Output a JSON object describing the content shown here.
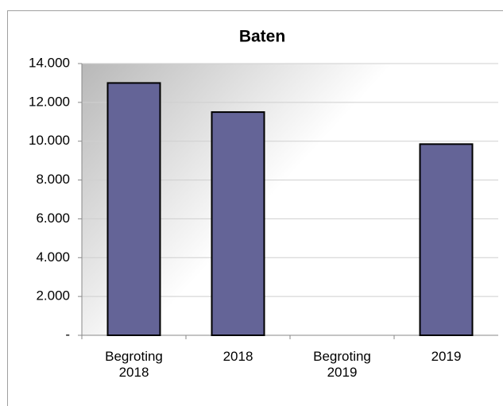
{
  "chart_data": {
    "type": "bar",
    "title": "Baten",
    "categories": [
      "Begroting 2018",
      "2018",
      "Begroting 2019",
      "2019"
    ],
    "values": [
      13000,
      11500,
      null,
      9850
    ],
    "color": "#646497",
    "ylim": [
      0,
      14000
    ],
    "yticks": [
      {
        "value": 0,
        "label": "-"
      },
      {
        "value": 2000,
        "label": "2.000"
      },
      {
        "value": 4000,
        "label": "4.000"
      },
      {
        "value": 6000,
        "label": "6.000"
      },
      {
        "value": 8000,
        "label": "8.000"
      },
      {
        "value": 10000,
        "label": "10.000"
      },
      {
        "value": 12000,
        "label": "12.000"
      },
      {
        "value": 14000,
        "label": "14.000"
      }
    ],
    "grid": true
  }
}
